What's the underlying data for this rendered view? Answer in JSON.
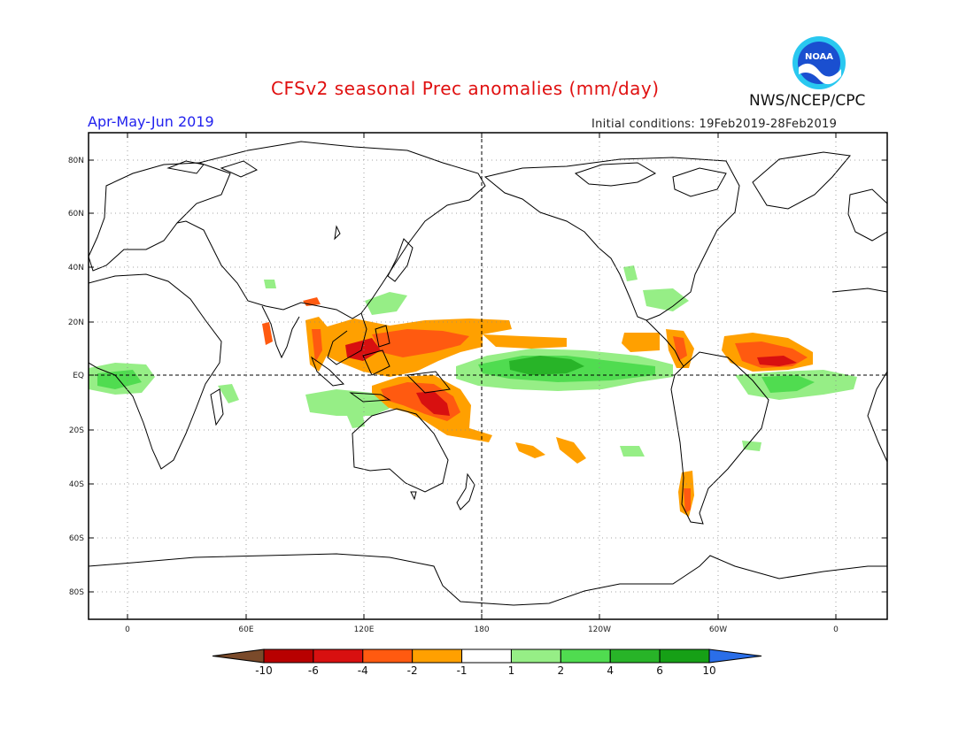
{
  "header": {
    "title": "CFSv2 seasonal Prec anomalies (mm/day)",
    "season": "Apr-May-Jun 2019",
    "initial_conditions": "Initial conditions: 19Feb2019-28Feb2019",
    "organization": "NWS/NCEP/CPC",
    "logo_text": "NOAA"
  },
  "axes": {
    "lat_ticks": [
      "80N",
      "60N",
      "40N",
      "20N",
      "EQ",
      "20S",
      "40S",
      "60S",
      "80S"
    ],
    "lon_ticks": [
      "0",
      "60E",
      "120E",
      "180",
      "120W",
      "60W",
      "0"
    ]
  },
  "colorbar": {
    "labels": [
      "-10",
      "-6",
      "-4",
      "-2",
      "-1",
      "1",
      "2",
      "4",
      "6",
      "10"
    ],
    "colors": [
      "#7a4a2a",
      "#b80000",
      "#d81010",
      "#ff5a10",
      "#ffa000",
      "#ffffff",
      "#96ee86",
      "#50dc50",
      "#28b428",
      "#16a016",
      "#2a6ee8"
    ]
  },
  "colors": {
    "title": "#e01010",
    "season": "#2222ee",
    "noaa_blue": "#1a4fd0",
    "noaa_cyan": "#29c8f0"
  }
}
